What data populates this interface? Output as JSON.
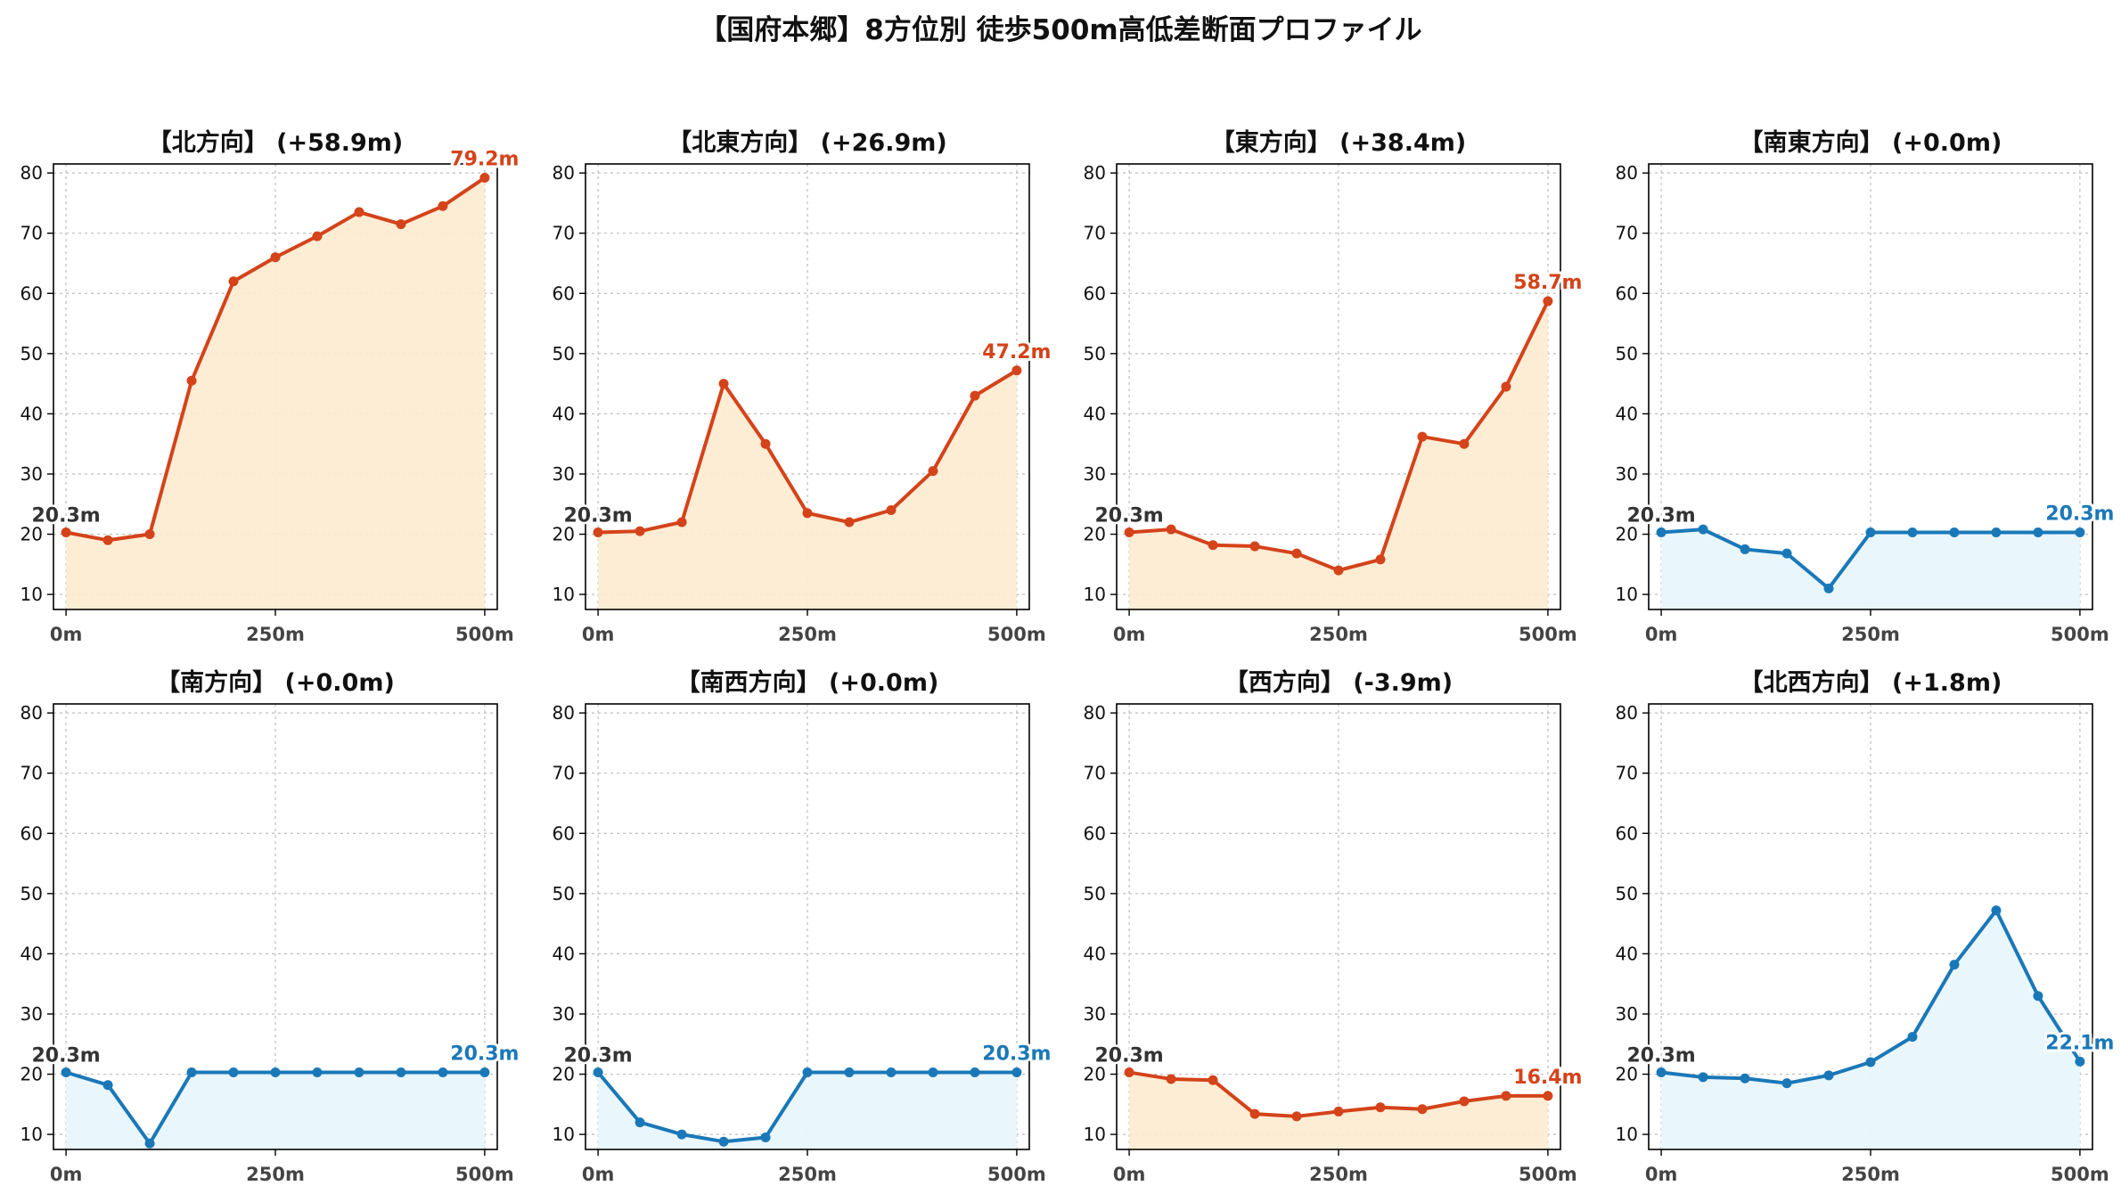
{
  "figure": {
    "title": "【国府本郷】8方位別 徒歩500m高低差断面プロファイル"
  },
  "colors": {
    "up_line": "#d4431a",
    "up_fill": "#fdebd0",
    "up_fill_opacity": 0.9,
    "flat_line": "#1a78b8",
    "flat_fill": "#e8f5fb",
    "flat_fill_opacity": 0.95,
    "start_label": "#333333"
  },
  "chart_data": [
    {
      "type": "area",
      "title": "【北方向】 (+58.9m)",
      "trend": "up",
      "x": [
        0,
        50,
        100,
        150,
        200,
        250,
        300,
        350,
        400,
        450,
        500
      ],
      "xticks": [
        0,
        250,
        500
      ],
      "xtick_labels": [
        "0m",
        "250m",
        "500m"
      ],
      "yticks": [
        10,
        20,
        30,
        40,
        50,
        60,
        70,
        80
      ],
      "ylim": [
        7.5,
        81.5
      ],
      "xlim": [
        -15,
        515
      ],
      "values": [
        20.3,
        19.0,
        20.0,
        45.5,
        62.0,
        66.0,
        69.5,
        73.5,
        71.5,
        74.5,
        79.2
      ],
      "start_label": "20.3m",
      "end_label": "79.2m",
      "grid": true
    },
    {
      "type": "area",
      "title": "【北東方向】 (+26.9m)",
      "trend": "up",
      "x": [
        0,
        50,
        100,
        150,
        200,
        250,
        300,
        350,
        400,
        450,
        500
      ],
      "xticks": [
        0,
        250,
        500
      ],
      "xtick_labels": [
        "0m",
        "250m",
        "500m"
      ],
      "yticks": [
        10,
        20,
        30,
        40,
        50,
        60,
        70,
        80
      ],
      "ylim": [
        7.5,
        81.5
      ],
      "xlim": [
        -15,
        515
      ],
      "values": [
        20.3,
        20.5,
        22.0,
        45.0,
        35.0,
        23.5,
        22.0,
        24.0,
        30.5,
        43.0,
        47.2
      ],
      "start_label": "20.3m",
      "end_label": "47.2m",
      "grid": true
    },
    {
      "type": "area",
      "title": "【東方向】 (+38.4m)",
      "trend": "up",
      "x": [
        0,
        50,
        100,
        150,
        200,
        250,
        300,
        350,
        400,
        450,
        500
      ],
      "xticks": [
        0,
        250,
        500
      ],
      "xtick_labels": [
        "0m",
        "250m",
        "500m"
      ],
      "yticks": [
        10,
        20,
        30,
        40,
        50,
        60,
        70,
        80
      ],
      "ylim": [
        7.5,
        81.5
      ],
      "xlim": [
        -15,
        515
      ],
      "values": [
        20.3,
        20.8,
        18.2,
        18.0,
        16.8,
        14.0,
        15.8,
        36.2,
        35.0,
        44.5,
        58.7
      ],
      "start_label": "20.3m",
      "end_label": "58.7m",
      "grid": true
    },
    {
      "type": "area",
      "title": "【南東方向】 (+0.0m)",
      "trend": "flat",
      "x": [
        0,
        50,
        100,
        150,
        200,
        250,
        300,
        350,
        400,
        450,
        500
      ],
      "xticks": [
        0,
        250,
        500
      ],
      "xtick_labels": [
        "0m",
        "250m",
        "500m"
      ],
      "yticks": [
        10,
        20,
        30,
        40,
        50,
        60,
        70,
        80
      ],
      "ylim": [
        7.5,
        81.5
      ],
      "xlim": [
        -15,
        515
      ],
      "values": [
        20.3,
        20.8,
        17.5,
        16.8,
        11.0,
        20.3,
        20.3,
        20.3,
        20.3,
        20.3,
        20.3
      ],
      "start_label": "20.3m",
      "end_label": "20.3m",
      "grid": true
    },
    {
      "type": "area",
      "title": "【南方向】 (+0.0m)",
      "trend": "flat",
      "x": [
        0,
        50,
        100,
        150,
        200,
        250,
        300,
        350,
        400,
        450,
        500
      ],
      "xticks": [
        0,
        250,
        500
      ],
      "xtick_labels": [
        "0m",
        "250m",
        "500m"
      ],
      "yticks": [
        10,
        20,
        30,
        40,
        50,
        60,
        70,
        80
      ],
      "ylim": [
        7.5,
        81.5
      ],
      "xlim": [
        -15,
        515
      ],
      "values": [
        20.3,
        18.2,
        8.5,
        20.3,
        20.3,
        20.3,
        20.3,
        20.3,
        20.3,
        20.3,
        20.3
      ],
      "start_label": "20.3m",
      "end_label": "20.3m",
      "grid": true
    },
    {
      "type": "area",
      "title": "【南西方向】 (+0.0m)",
      "trend": "flat",
      "x": [
        0,
        50,
        100,
        150,
        200,
        250,
        300,
        350,
        400,
        450,
        500
      ],
      "xticks": [
        0,
        250,
        500
      ],
      "xtick_labels": [
        "0m",
        "250m",
        "500m"
      ],
      "yticks": [
        10,
        20,
        30,
        40,
        50,
        60,
        70,
        80
      ],
      "ylim": [
        7.5,
        81.5
      ],
      "xlim": [
        -15,
        515
      ],
      "values": [
        20.3,
        12.0,
        10.0,
        8.8,
        9.5,
        20.3,
        20.3,
        20.3,
        20.3,
        20.3,
        20.3
      ],
      "start_label": "20.3m",
      "end_label": "20.3m",
      "grid": true
    },
    {
      "type": "area",
      "title": "【西方向】 (-3.9m)",
      "trend": "up",
      "x": [
        0,
        50,
        100,
        150,
        200,
        250,
        300,
        350,
        400,
        450,
        500
      ],
      "xticks": [
        0,
        250,
        500
      ],
      "xtick_labels": [
        "0m",
        "250m",
        "500m"
      ],
      "yticks": [
        10,
        20,
        30,
        40,
        50,
        60,
        70,
        80
      ],
      "ylim": [
        7.5,
        81.5
      ],
      "xlim": [
        -15,
        515
      ],
      "values": [
        20.3,
        19.2,
        19.0,
        13.4,
        13.0,
        13.8,
        14.5,
        14.2,
        15.5,
        16.4,
        16.4
      ],
      "start_label": "20.3m",
      "end_label": "16.4m",
      "grid": true
    },
    {
      "type": "area",
      "title": "【北西方向】 (+1.8m)",
      "trend": "flat",
      "x": [
        0,
        50,
        100,
        150,
        200,
        250,
        300,
        350,
        400,
        450,
        500
      ],
      "xticks": [
        0,
        250,
        500
      ],
      "xtick_labels": [
        "0m",
        "250m",
        "500m"
      ],
      "yticks": [
        10,
        20,
        30,
        40,
        50,
        60,
        70,
        80
      ],
      "ylim": [
        7.5,
        81.5
      ],
      "xlim": [
        -15,
        515
      ],
      "values": [
        20.3,
        19.5,
        19.3,
        18.5,
        19.8,
        22.0,
        26.2,
        38.2,
        47.2,
        33.0,
        22.1
      ],
      "start_label": "20.3m",
      "end_label": "22.1m",
      "grid": true
    }
  ]
}
